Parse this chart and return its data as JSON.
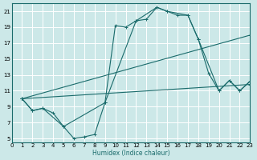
{
  "xlabel": "Humidex (Indice chaleur)",
  "bg_color": "#cce8e8",
  "grid_color": "#ffffff",
  "line_color": "#1a6b6b",
  "xlim": [
    0,
    23
  ],
  "ylim": [
    4.5,
    22
  ],
  "xticks": [
    0,
    1,
    2,
    3,
    4,
    5,
    6,
    7,
    8,
    9,
    10,
    11,
    12,
    13,
    14,
    15,
    16,
    17,
    18,
    19,
    20,
    21,
    22,
    23
  ],
  "yticks": [
    5,
    7,
    9,
    11,
    13,
    15,
    17,
    19,
    21
  ],
  "line1_x": [
    1,
    2,
    3,
    4,
    5,
    6,
    7,
    8,
    9,
    10,
    11,
    12,
    13,
    14,
    15,
    16,
    17,
    18,
    19,
    20,
    21,
    22,
    23
  ],
  "line1_y": [
    10,
    8.5,
    8.8,
    8.2,
    6.5,
    5.0,
    5.2,
    5.5,
    9.5,
    19.2,
    19.0,
    19.8,
    20.0,
    21.5,
    21.0,
    20.5,
    20.5,
    17.5,
    13.2,
    11.0,
    12.3,
    11.0,
    12.2
  ],
  "line2_x": [
    1,
    2,
    3,
    5,
    9,
    12,
    14,
    15,
    17,
    18,
    20,
    21,
    22,
    23
  ],
  "line2_y": [
    10,
    8.5,
    8.8,
    6.5,
    9.5,
    19.8,
    21.5,
    21.0,
    20.5,
    17.5,
    11.0,
    12.3,
    11.0,
    12.2
  ],
  "line3_x": [
    1,
    23
  ],
  "line3_y": [
    10,
    18.0
  ],
  "line4_x": [
    1,
    23
  ],
  "line4_y": [
    10,
    11.8
  ]
}
